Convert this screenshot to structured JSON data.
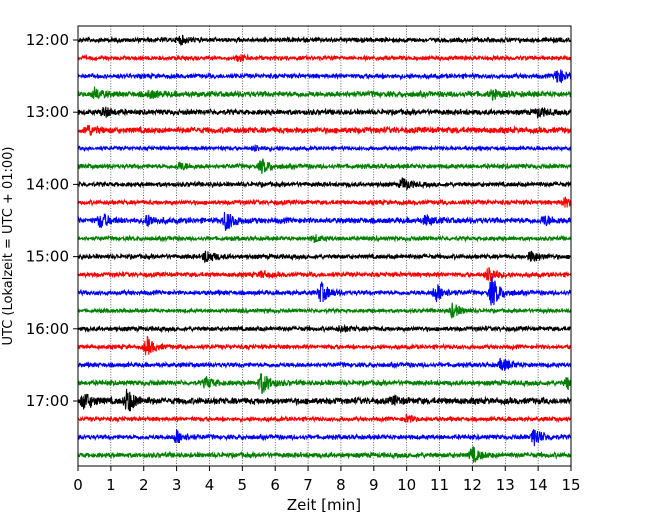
{
  "chart_data": {
    "type": "line",
    "title": "",
    "xlabel": "Zeit  [min]",
    "ylabel": "UTC (Lokalzeit = UTC + 01:00)",
    "xlim": [
      0,
      15
    ],
    "x_ticks": [
      0,
      1,
      2,
      3,
      4,
      5,
      6,
      7,
      8,
      9,
      10,
      11,
      12,
      13,
      14,
      15
    ],
    "y_tick_labels": [
      "12:00",
      "13:00",
      "14:00",
      "15:00",
      "16:00",
      "17:00"
    ],
    "grid": "vertical dotted at each minute",
    "trace_minutes": 15,
    "trace_colors": [
      "#000000",
      "#ff0000",
      "#0000ff",
      "#008000"
    ],
    "traces": [
      {
        "start": "12:00",
        "color": "#000000",
        "noise": 0.22,
        "events": [
          {
            "t": 3.1,
            "a": 0.45
          }
        ]
      },
      {
        "start": "12:15",
        "color": "#ff0000",
        "noise": 0.2,
        "events": [
          {
            "t": 4.9,
            "a": 0.3
          }
        ]
      },
      {
        "start": "12:30",
        "color": "#0000ff",
        "noise": 0.22,
        "events": [
          {
            "t": 14.6,
            "a": 0.85
          }
        ]
      },
      {
        "start": "12:45",
        "color": "#008000",
        "noise": 0.28,
        "events": [
          {
            "t": 0.5,
            "a": 0.55
          },
          {
            "t": 2.2,
            "a": 0.35
          },
          {
            "t": 12.6,
            "a": 0.4
          }
        ]
      },
      {
        "start": "13:00",
        "color": "#000000",
        "noise": 0.26,
        "events": [
          {
            "t": 0.8,
            "a": 0.5
          },
          {
            "t": 14.0,
            "a": 0.5
          }
        ]
      },
      {
        "start": "13:15",
        "color": "#ff0000",
        "noise": 0.3,
        "events": [
          {
            "t": 0.3,
            "a": 0.5
          }
        ]
      },
      {
        "start": "13:30",
        "color": "#0000ff",
        "noise": 0.18,
        "events": [
          {
            "t": 5.4,
            "a": 0.3
          }
        ]
      },
      {
        "start": "13:45",
        "color": "#008000",
        "noise": 0.22,
        "events": [
          {
            "t": 3.1,
            "a": 0.4
          },
          {
            "t": 5.6,
            "a": 0.75
          }
        ]
      },
      {
        "start": "14:00",
        "color": "#000000",
        "noise": 0.22,
        "events": [
          {
            "t": 9.9,
            "a": 0.65
          }
        ]
      },
      {
        "start": "14:15",
        "color": "#ff0000",
        "noise": 0.22,
        "events": [
          {
            "t": 14.8,
            "a": 0.45
          }
        ]
      },
      {
        "start": "14:30",
        "color": "#0000ff",
        "noise": 0.28,
        "events": [
          {
            "t": 0.7,
            "a": 0.8
          },
          {
            "t": 2.1,
            "a": 0.6
          },
          {
            "t": 4.5,
            "a": 1.1
          },
          {
            "t": 10.6,
            "a": 0.5
          },
          {
            "t": 14.2,
            "a": 0.5
          }
        ]
      },
      {
        "start": "14:45",
        "color": "#008000",
        "noise": 0.2,
        "events": [
          {
            "t": 7.2,
            "a": 0.35
          }
        ]
      },
      {
        "start": "15:00",
        "color": "#000000",
        "noise": 0.22,
        "events": [
          {
            "t": 3.9,
            "a": 0.7
          },
          {
            "t": 13.8,
            "a": 0.6
          }
        ]
      },
      {
        "start": "15:15",
        "color": "#ff0000",
        "noise": 0.22,
        "events": [
          {
            "t": 5.6,
            "a": 0.35
          },
          {
            "t": 12.5,
            "a": 0.85
          }
        ]
      },
      {
        "start": "15:30",
        "color": "#0000ff",
        "noise": 0.22,
        "events": [
          {
            "t": 7.4,
            "a": 1.1
          },
          {
            "t": 10.9,
            "a": 1.0
          },
          {
            "t": 12.6,
            "a": 1.7
          }
        ]
      },
      {
        "start": "15:45",
        "color": "#008000",
        "noise": 0.18,
        "events": [
          {
            "t": 11.4,
            "a": 0.8
          }
        ]
      },
      {
        "start": "16:00",
        "color": "#000000",
        "noise": 0.22,
        "events": [
          {
            "t": 8.0,
            "a": 0.3
          }
        ]
      },
      {
        "start": "16:15",
        "color": "#ff0000",
        "noise": 0.2,
        "events": [
          {
            "t": 2.1,
            "a": 1.0
          }
        ]
      },
      {
        "start": "16:30",
        "color": "#0000ff",
        "noise": 0.22,
        "events": [
          {
            "t": 12.9,
            "a": 0.7
          }
        ]
      },
      {
        "start": "16:45",
        "color": "#008000",
        "noise": 0.24,
        "events": [
          {
            "t": 3.9,
            "a": 0.55
          },
          {
            "t": 5.6,
            "a": 1.2
          },
          {
            "t": 14.9,
            "a": 0.6
          }
        ]
      },
      {
        "start": "17:00",
        "color": "#000000",
        "noise": 0.32,
        "events": [
          {
            "t": 0.2,
            "a": 0.9
          },
          {
            "t": 1.5,
            "a": 1.3
          },
          {
            "t": 9.6,
            "a": 0.35
          }
        ]
      },
      {
        "start": "17:15",
        "color": "#ff0000",
        "noise": 0.2,
        "events": [
          {
            "t": 10.0,
            "a": 0.4
          }
        ]
      },
      {
        "start": "17:30",
        "color": "#0000ff",
        "noise": 0.22,
        "events": [
          {
            "t": 3.0,
            "a": 0.75
          },
          {
            "t": 13.9,
            "a": 1.0
          }
        ]
      },
      {
        "start": "17:45",
        "color": "#008000",
        "noise": 0.24,
        "events": [
          {
            "t": 12.0,
            "a": 0.8
          }
        ]
      }
    ]
  }
}
